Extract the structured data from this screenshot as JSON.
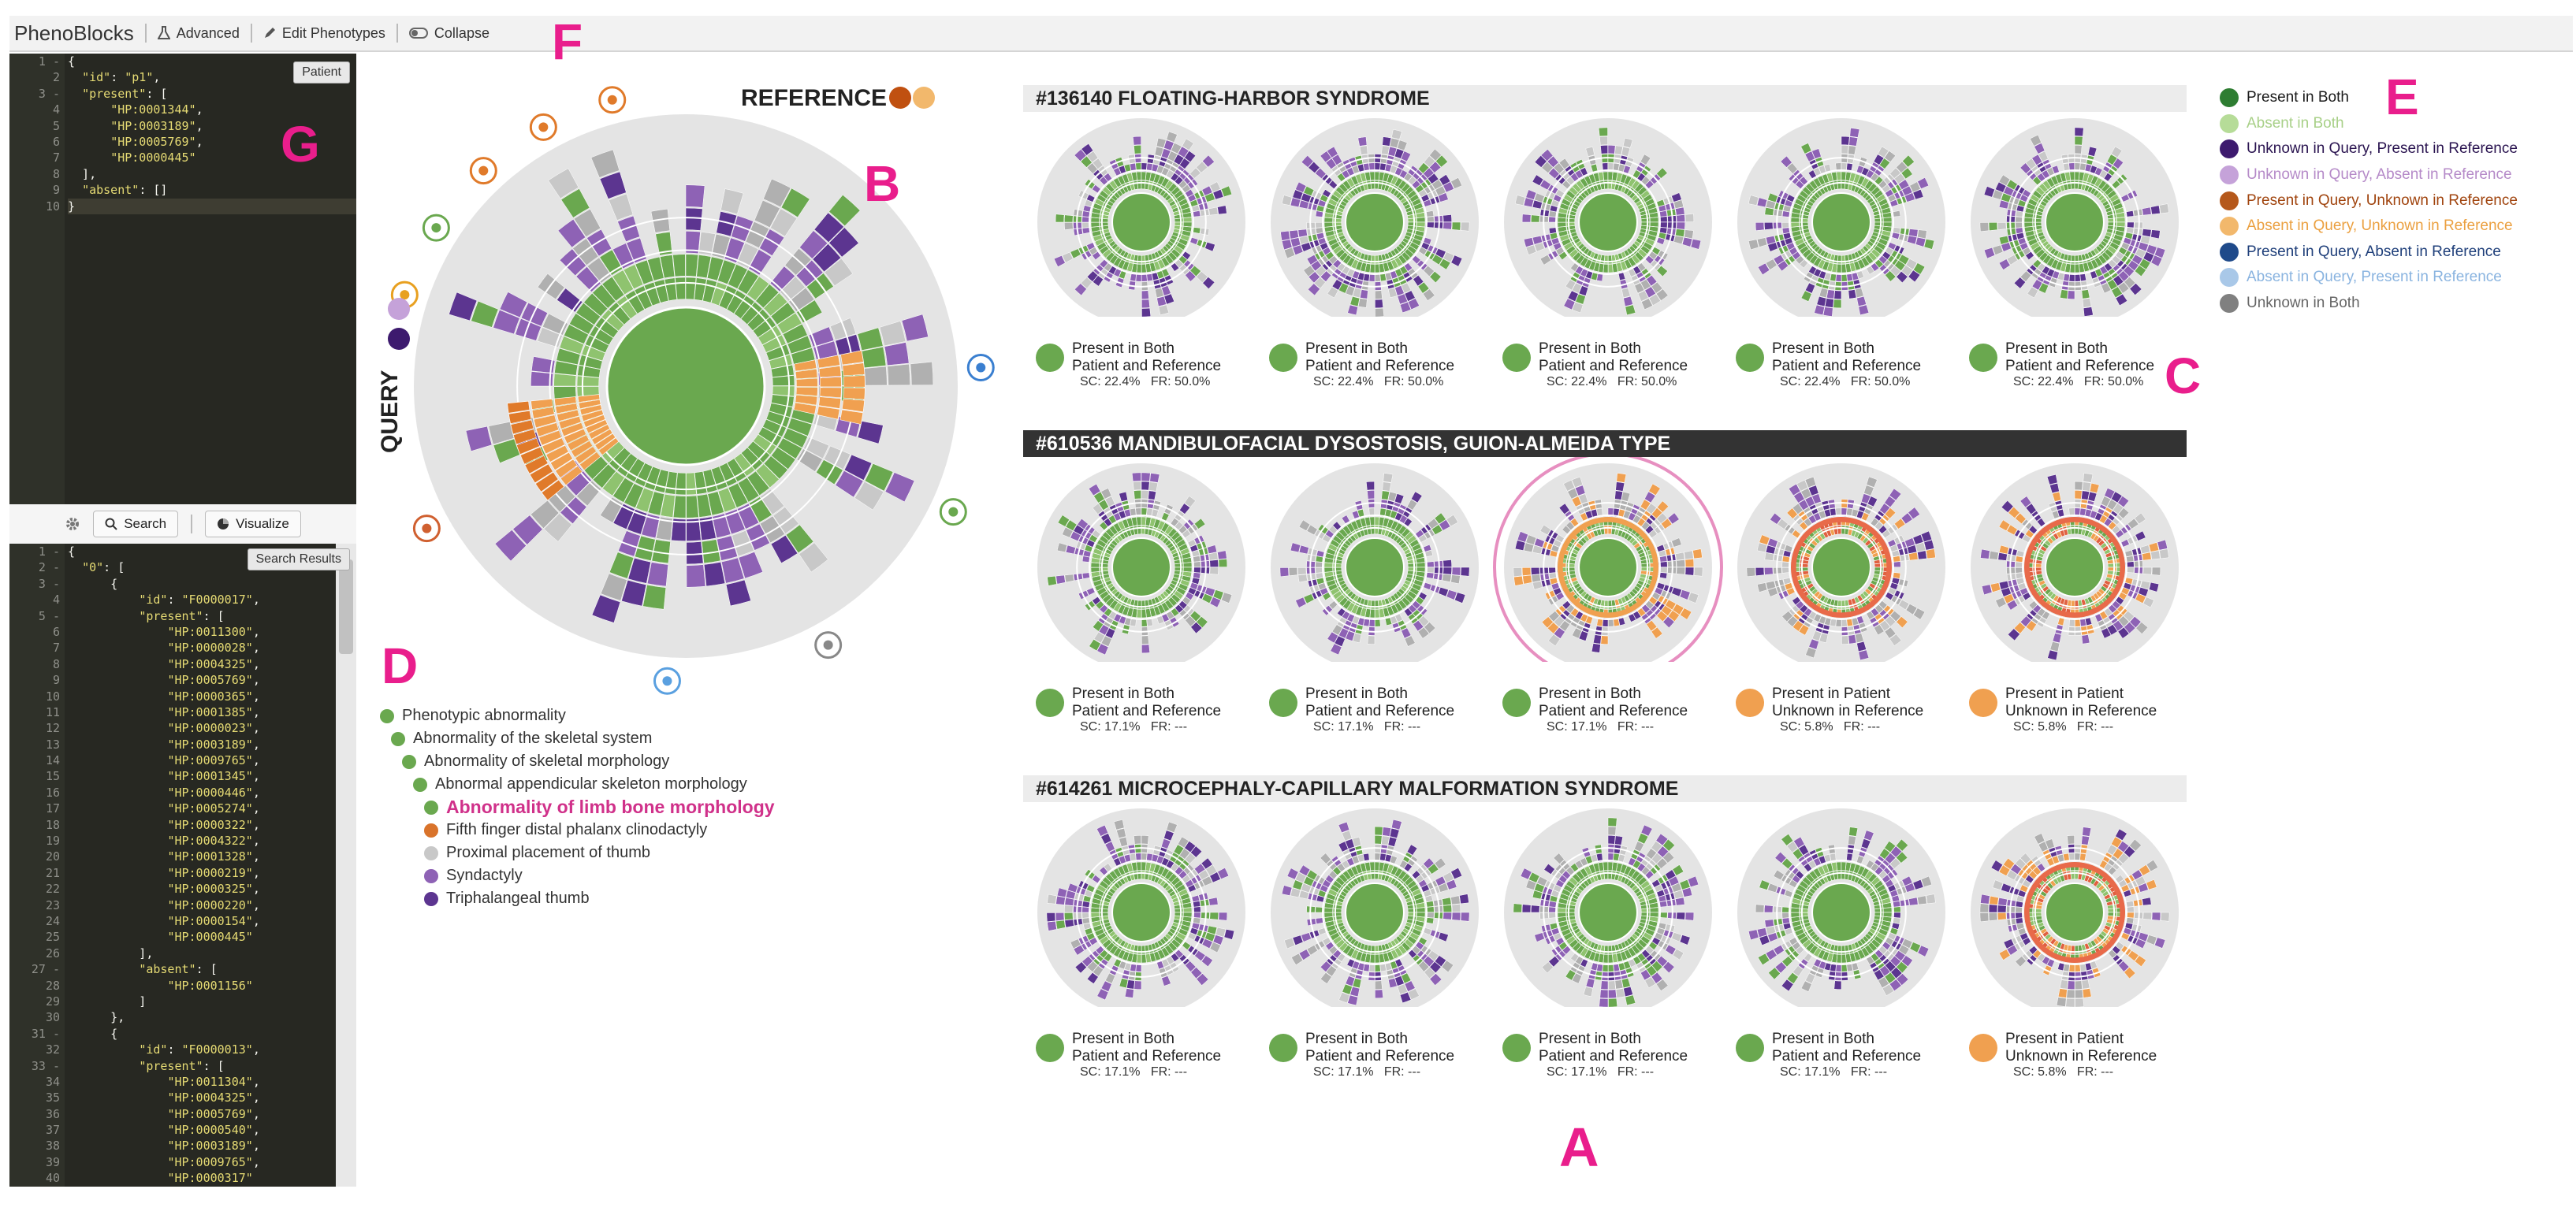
{
  "app": {
    "title": "PhenoBlocks"
  },
  "toolbar": {
    "advanced": "Advanced",
    "edit": "Edit Phenotypes",
    "collapse": "Collapse"
  },
  "letters": {
    "A": "A",
    "B": "B",
    "C": "C",
    "D": "D",
    "E": "E",
    "F": "F",
    "G": "G"
  },
  "colors": {
    "present_both": "#6aa84f",
    "absent_both": "#b6dc98",
    "uq_pr": "#4b1f7a",
    "uq_ar": "#c5a2d9",
    "pq_ur": "#d9732b",
    "aq_ur": "#f2b86c",
    "pq_ar": "#2a4d89",
    "aq_pr": "#a9c8e8",
    "unknown_both": "#8a8a8a"
  },
  "patient_editor": {
    "button": "Patient",
    "lines": [
      "{",
      "  \"id\": \"p1\",",
      "  \"present\": [",
      "      \"HP:0001344\",",
      "      \"HP:0003189\",",
      "      \"HP:0005769\",",
      "      \"HP:0000445\"",
      "  ],",
      "  \"absent\": []",
      "}"
    ]
  },
  "search": {
    "search_label": "Search",
    "visualize_label": "Visualize",
    "results_label": "Search Results"
  },
  "results_editor": {
    "lines": [
      "{",
      "  \"0\": [",
      "      {",
      "          \"id\": \"F0000017\",",
      "          \"present\": [",
      "              \"HP:0011300\",",
      "              \"HP:0000028\",",
      "              \"HP:0004325\",",
      "              \"HP:0005769\",",
      "              \"HP:0000365\",",
      "              \"HP:0001385\",",
      "              \"HP:0000023\",",
      "              \"HP:0003189\",",
      "              \"HP:0009765\",",
      "              \"HP:0001345\",",
      "              \"HP:0000446\",",
      "              \"HP:0005274\",",
      "              \"HP:0000322\",",
      "              \"HP:0004322\",",
      "              \"HP:0001328\",",
      "              \"HP:0000219\",",
      "              \"HP:0000325\",",
      "              \"HP:0000220\",",
      "              \"HP:0000154\",",
      "              \"HP:0000445\"",
      "          ],",
      "          \"absent\": [",
      "              \"HP:0001156\"",
      "          ]",
      "      },",
      "      {",
      "          \"id\": \"F0000013\",",
      "          \"present\": [",
      "              \"HP:0011304\",",
      "              \"HP:0004325\",",
      "              \"HP:0005769\",",
      "              \"HP:0000540\",",
      "              \"HP:0003189\",",
      "              \"HP:0009765\",",
      "              \"HP:0000317\""
    ]
  },
  "main_chart": {
    "reference_label": "REFERENCE",
    "query_label": "QUERY"
  },
  "tree": [
    {
      "label": "Phenotypic abnormality",
      "color": "#6aa84f",
      "indent": 0,
      "highlight": false
    },
    {
      "label": "Abnormality of the skeletal system",
      "color": "#6aa84f",
      "indent": 1,
      "highlight": false
    },
    {
      "label": "Abnormality of skeletal morphology",
      "color": "#6aa84f",
      "indent": 2,
      "highlight": false
    },
    {
      "label": "Abnormal appendicular skeleton morphology",
      "color": "#6aa84f",
      "indent": 3,
      "highlight": false
    },
    {
      "label": "Abnormality of limb bone morphology",
      "color": "#6aa84f",
      "indent": 4,
      "highlight": true
    },
    {
      "label": "Fifth finger distal phalanx clinodactyly",
      "color": "#d9732b",
      "indent": 4,
      "highlight": false
    },
    {
      "label": "Proximal placement of thumb",
      "color": "#c8c8c8",
      "indent": 4,
      "highlight": false
    },
    {
      "label": "Syndactyly",
      "color": "#8e62b5",
      "indent": 4,
      "highlight": false
    },
    {
      "label": "Triphalangeal thumb",
      "color": "#5c3590",
      "indent": 4,
      "highlight": false
    }
  ],
  "sections": [
    {
      "title": "#136140 FLOATING-HARBOR SYNDROME",
      "dark": false,
      "cards": [
        {
          "l1": "Present in Both",
          "l2": "Patient and Reference",
          "stats": "SC: 22.4%   FR: 50.0%",
          "dot": "#6aa84f",
          "scheme": "green",
          "selected": false
        },
        {
          "l1": "Present in Both",
          "l2": "Patient and Reference",
          "stats": "SC: 22.4%   FR: 50.0%",
          "dot": "#6aa84f",
          "scheme": "green",
          "selected": false
        },
        {
          "l1": "Present in Both",
          "l2": "Patient and Reference",
          "stats": "SC: 22.4%   FR: 50.0%",
          "dot": "#6aa84f",
          "scheme": "green",
          "selected": false
        },
        {
          "l1": "Present in Both",
          "l2": "Patient and Reference",
          "stats": "SC: 22.4%   FR: 50.0%",
          "dot": "#6aa84f",
          "scheme": "green",
          "selected": false
        },
        {
          "l1": "Present in Both",
          "l2": "Patient and Reference",
          "stats": "SC: 22.4%   FR: 50.0%",
          "dot": "#6aa84f",
          "scheme": "green",
          "selected": false
        }
      ]
    },
    {
      "title": "#610536 MANDIBULOFACIAL DYSOSTOSIS, GUION-ALMEIDA TYPE",
      "dark": true,
      "cards": [
        {
          "l1": "Present in Both",
          "l2": "Patient and Reference",
          "stats": "SC: 17.1%   FR: ---",
          "dot": "#6aa84f",
          "scheme": "green",
          "selected": false
        },
        {
          "l1": "Present in Both",
          "l2": "Patient and Reference",
          "stats": "SC: 17.1%   FR: ---",
          "dot": "#6aa84f",
          "scheme": "green",
          "selected": false
        },
        {
          "l1": "Present in Both",
          "l2": "Patient and Reference",
          "stats": "SC: 17.1%   FR: ---",
          "dot": "#6aa84f",
          "scheme": "orange",
          "selected": true
        },
        {
          "l1": "Present in Patient",
          "l2": "Unknown in Reference",
          "stats": "SC: 5.8%   FR: ---",
          "dot": "#f0a050",
          "scheme": "red",
          "selected": false
        },
        {
          "l1": "Present in Patient",
          "l2": "Unknown in Reference",
          "stats": "SC: 5.8%   FR: ---",
          "dot": "#f0a050",
          "scheme": "red",
          "selected": false
        }
      ]
    },
    {
      "title": "#614261 MICROCEPHALY-CAPILLARY MALFORMATION SYNDROME",
      "dark": false,
      "cards": [
        {
          "l1": "Present in Both",
          "l2": "Patient and Reference",
          "stats": "SC: 17.1%   FR: ---",
          "dot": "#6aa84f",
          "scheme": "green",
          "selected": false
        },
        {
          "l1": "Present in Both",
          "l2": "Patient and Reference",
          "stats": "SC: 17.1%   FR: ---",
          "dot": "#6aa84f",
          "scheme": "green",
          "selected": false
        },
        {
          "l1": "Present in Both",
          "l2": "Patient and Reference",
          "stats": "SC: 17.1%   FR: ---",
          "dot": "#6aa84f",
          "scheme": "green",
          "selected": false
        },
        {
          "l1": "Present in Both",
          "l2": "Patient and Reference",
          "stats": "SC: 17.1%   FR: ---",
          "dot": "#6aa84f",
          "scheme": "green",
          "selected": false
        },
        {
          "l1": "Present in Patient",
          "l2": "Unknown in Reference",
          "stats": "SC: 5.8%   FR: ---",
          "dot": "#f0a050",
          "scheme": "red",
          "selected": false
        }
      ]
    }
  ],
  "legend": [
    {
      "label": "Present in Both",
      "color": "#2e7d32",
      "text": "#1a1a1a"
    },
    {
      "label": "Absent in Both",
      "color": "#b6dc98",
      "text": "#a8d088"
    },
    {
      "label": "Unknown in Query, Present in Reference",
      "color": "#3d1a6e",
      "text": "#2a1450"
    },
    {
      "label": "Unknown in Query, Absent in Reference",
      "color": "#c5a2d9",
      "text": "#b58ac8"
    },
    {
      "label": "Present in Query, Unknown in Reference",
      "color": "#b5581b",
      "text": "#a0440e"
    },
    {
      "label": "Absent in Query, Unknown in Reference",
      "color": "#f2b86c",
      "text": "#eba040"
    },
    {
      "label": "Present in Query, Absent in Reference",
      "color": "#1f4a8a",
      "text": "#1f3f7a"
    },
    {
      "label": "Absent in Query, Present in Reference",
      "color": "#a9c8e8",
      "text": "#8ab4e0"
    },
    {
      "label": "Unknown in Both",
      "color": "#808080",
      "text": "#666666"
    }
  ]
}
